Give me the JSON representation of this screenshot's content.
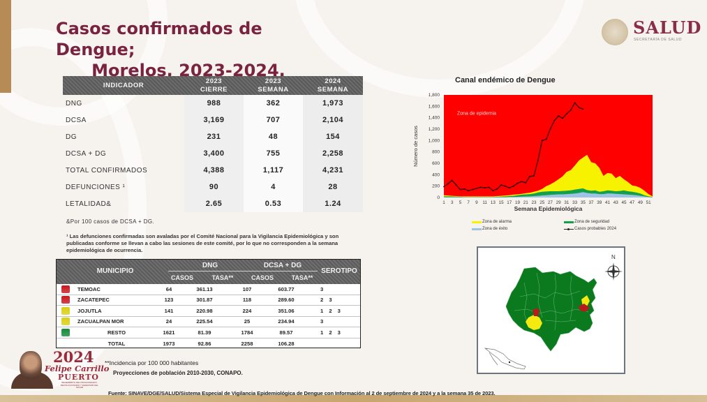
{
  "title": {
    "line1": "Casos confirmados de Dengue;",
    "line2": "Morelos, 2023-2024."
  },
  "logo": {
    "word": "SALUD",
    "subtitle": "SECRETARÍA DE SALUD"
  },
  "indicator_table": {
    "headers": [
      {
        "l1": "INDICADOR",
        "l2": ""
      },
      {
        "l1": "2023",
        "l2": "CIERRE"
      },
      {
        "l1": "2023",
        "l2": "SEMANA"
      },
      {
        "l1": "2024",
        "l2": "SEMANA"
      }
    ],
    "rows": [
      {
        "label": "DNG",
        "v2023c": "988",
        "v2023s": "362",
        "v2024s": "1,973"
      },
      {
        "label": "DCSA",
        "v2023c": "3,169",
        "v2023s": "707",
        "v2024s": "2,104"
      },
      {
        "label": "DG",
        "v2023c": "231",
        "v2023s": "48",
        "v2024s": "154"
      },
      {
        "label": "DCSA + DG",
        "v2023c": "3,400",
        "v2023s": "755",
        "v2024s": "2,258"
      },
      {
        "label": "TOTAL CONFIRMADOS",
        "v2023c": "4,388",
        "v2023s": "1,117",
        "v2024s": "4,231"
      },
      {
        "label": "DEFUNCIONES ¹",
        "v2023c": "90",
        "v2023s": "4",
        "v2024s": "28"
      },
      {
        "label": "LETALIDAD&",
        "v2023c": "2.65",
        "v2023s": "0.53",
        "v2024s": "1.24"
      }
    ]
  },
  "notes": {
    "amp": "&Por 100 casos de DCSA + DG.",
    "deaths": "¹ Las defunciones confirmadas son avaladas por el Comité Nacional para la Vigilancia Epidemiológica y son publicadas conforme se llevan a cabo las sesiones de este comité, por lo que no corresponden a la semana epidemiológica de ocurrencia."
  },
  "municipio_table": {
    "headers": {
      "municipio": "MUNICIPIO",
      "dng": "DNG",
      "dcsa_dg": "DCSA + DG",
      "serotipo": "SEROTIPO",
      "casos": "CASOS",
      "tasa": "TASA**"
    },
    "rows": [
      {
        "color": "#c8161d",
        "name": "TEMOAC",
        "dng_casos": "64",
        "dng_tasa": "361.13",
        "dcsa_casos": "107",
        "dcsa_tasa": "603.77",
        "serotipo": "3"
      },
      {
        "color": "#c8161d",
        "name": "ZACATEPEC",
        "dng_casos": "123",
        "dng_tasa": "301.87",
        "dcsa_casos": "118",
        "dcsa_tasa": "289.60",
        "serotipo": "2 3"
      },
      {
        "color": "#d8cf12",
        "name": "JOJUTLA",
        "dng_casos": "141",
        "dng_tasa": "220.98",
        "dcsa_casos": "224",
        "dcsa_tasa": "351.06",
        "serotipo": "1 2 3"
      },
      {
        "color": "#d8cf12",
        "name": "ZACUALPAN MOR",
        "dng_casos": "24",
        "dng_tasa": "225.54",
        "dcsa_casos": "25",
        "dcsa_tasa": "234.94",
        "serotipo": "3"
      },
      {
        "color": "#158a3a",
        "name": "RESTO",
        "dng_casos": "1621",
        "dng_tasa": "81.39",
        "dcsa_casos": "1784",
        "dcsa_tasa": "89.57",
        "serotipo": "1 2 3"
      },
      {
        "color": "",
        "name": "TOTAL",
        "dng_casos": "1973",
        "dng_tasa": "92.86",
        "dcsa_casos": "2258",
        "dcsa_tasa": "106.28",
        "serotipo": ""
      }
    ]
  },
  "chart_data": {
    "type": "area",
    "title": "Canal endémico de Dengue",
    "xlabel": "Semana Epidemiológica",
    "ylabel": "Número de casos",
    "ylim": [
      0,
      1800
    ],
    "yticks": [
      "0",
      "200",
      "400",
      "600",
      "800",
      "1,000",
      "1,200",
      "1,400",
      "1,600",
      "1,800"
    ],
    "xticks": [
      "1",
      "3",
      "5",
      "7",
      "9",
      "11",
      "13",
      "15",
      "17",
      "19",
      "21",
      "23",
      "25",
      "27",
      "29",
      "31",
      "33",
      "35",
      "37",
      "39",
      "41",
      "43",
      "45",
      "47",
      "49",
      "51"
    ],
    "annotation": "Zona de epidemia",
    "x": [
      1,
      2,
      3,
      4,
      5,
      6,
      7,
      8,
      9,
      10,
      11,
      12,
      13,
      14,
      15,
      16,
      17,
      18,
      19,
      20,
      21,
      22,
      23,
      24,
      25,
      26,
      27,
      28,
      29,
      30,
      31,
      32,
      33,
      34,
      35,
      36,
      37,
      38,
      39,
      40,
      41,
      42,
      43,
      44,
      45,
      46,
      47,
      48,
      49,
      50,
      51,
      52
    ],
    "series": [
      {
        "name": "Zona de éxito",
        "color": "#9fc3e6",
        "values": [
          5,
          5,
          5,
          5,
          5,
          5,
          5,
          5,
          5,
          5,
          5,
          5,
          5,
          5,
          5,
          5,
          8,
          10,
          12,
          15,
          18,
          20,
          25,
          30,
          35,
          40,
          45,
          50,
          55,
          55,
          60,
          65,
          70,
          80,
          95,
          80,
          70,
          70,
          60,
          60,
          70,
          70,
          65,
          60,
          55,
          50,
          45,
          40,
          30,
          20,
          10,
          5
        ]
      },
      {
        "name": "Zona de seguridad",
        "color": "#14a04a",
        "values": [
          20,
          20,
          18,
          15,
          12,
          10,
          10,
          10,
          10,
          10,
          10,
          10,
          10,
          12,
          15,
          20,
          25,
          30,
          40,
          50,
          55,
          60,
          70,
          90,
          100,
          105,
          110,
          110,
          110,
          115,
          120,
          125,
          140,
          150,
          160,
          130,
          120,
          125,
          100,
          110,
          125,
          120,
          110,
          115,
          125,
          110,
          100,
          90,
          70,
          40,
          20,
          10
        ]
      },
      {
        "name": "Zona de alarma",
        "color": "#f7f200",
        "values": [
          40,
          35,
          30,
          25,
          20,
          20,
          20,
          20,
          20,
          20,
          20,
          20,
          20,
          25,
          30,
          35,
          40,
          50,
          55,
          65,
          75,
          85,
          100,
          120,
          150,
          200,
          230,
          270,
          320,
          370,
          450,
          480,
          560,
          650,
          700,
          750,
          620,
          600,
          520,
          380,
          430,
          420,
          340,
          380,
          320,
          270,
          210,
          200,
          170,
          120,
          60,
          20
        ]
      },
      {
        "name": "Zona de epidemia",
        "color": "#ff0000",
        "values": [
          1800,
          1800,
          1800,
          1800,
          1800,
          1800,
          1800,
          1800,
          1800,
          1800,
          1800,
          1800,
          1800,
          1800,
          1800,
          1800,
          1800,
          1800,
          1800,
          1800,
          1800,
          1800,
          1800,
          1800,
          1800,
          1800,
          1800,
          1800,
          1800,
          1800,
          1800,
          1800,
          1800,
          1800,
          1800,
          1800,
          1800,
          1800,
          1800,
          1800,
          1800,
          1800,
          1800,
          1800,
          1800,
          1800,
          1800,
          1800,
          1800,
          1800,
          1800,
          1800
        ]
      },
      {
        "name": "Casos probables 2024",
        "color": "#5a0a0a",
        "values": [
          190,
          240,
          300,
          220,
          140,
          150,
          120,
          140,
          160,
          180,
          170,
          180,
          120,
          150,
          220,
          200,
          170,
          200,
          250,
          280,
          260,
          370,
          380,
          650,
          1000,
          1020,
          1200,
          1350,
          1430,
          1390,
          1470,
          1530,
          1660,
          1580,
          1550
        ]
      }
    ],
    "legend": [
      "Zona de alarma",
      "Zona de seguridad",
      "Zona de éxito",
      "Casos probables 2024"
    ],
    "legend_position": "bottom"
  },
  "map": {
    "north_label": "N",
    "legend_colors": {
      "red": "#c01a1a",
      "yellow": "#f5ea10",
      "green": "#0b7a1f"
    }
  },
  "footer": {
    "incidencia": "**Incidencia por 100 000 habitantes",
    "proyecciones": "Proyecciones de población 2010-2030,  CONAPO.",
    "source": "Fuente: SINAVE/DGE/SALUD/Sistema Especial de Vigilancia Epidemiológica de Dengue con Información al 2 de septiembre de 2024 y a la semana 35 de 2023.",
    "brand_year": "2024",
    "brand_name": "Felipe Carrillo",
    "brand_name2": "PUERTO",
    "brand_tagline": "BENEMÉRITO DEL PROLETARIADO, REVOLUCIONARIO Y DEFENSOR DEL MAYAB"
  }
}
